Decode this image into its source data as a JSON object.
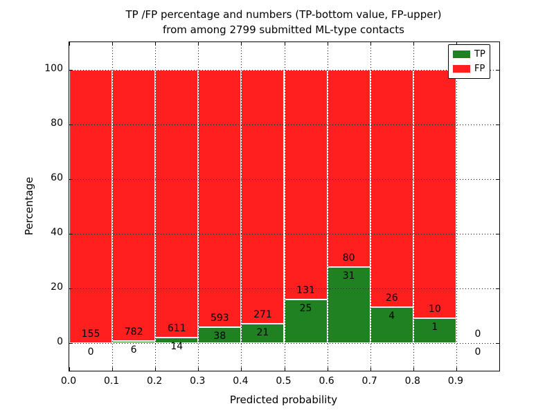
{
  "chart_data": {
    "type": "bar",
    "stacking": "percent",
    "title": "TP /FP percentage and numbers (TP-bottom value, FP-upper)\nfrom among 2799 submitted ML-type contacts",
    "xlabel": "Predicted probability",
    "ylabel": "Percentage",
    "xlim": [
      0.0,
      1.0
    ],
    "ylim": [
      -10,
      110
    ],
    "xticks": [
      0.0,
      0.1,
      0.2,
      0.3,
      0.4,
      0.5,
      0.6,
      0.7,
      0.8,
      0.9
    ],
    "xtick_labels": [
      "0.0",
      "0.1",
      "0.2",
      "0.3",
      "0.4",
      "0.5",
      "0.6",
      "0.7",
      "0.8",
      "0.9"
    ],
    "yticks": [
      0,
      20,
      40,
      60,
      80,
      100
    ],
    "bins": {
      "start": 0.0,
      "width": 0.1,
      "count": 10
    },
    "series": [
      {
        "name": "TP",
        "color": "#1f8121",
        "counts": [
          0,
          6,
          14,
          38,
          21,
          25,
          31,
          4,
          1,
          0
        ]
      },
      {
        "name": "FP",
        "color": "#ff1f1f",
        "counts": [
          155,
          782,
          611,
          593,
          271,
          131,
          80,
          26,
          10,
          0
        ]
      }
    ],
    "total_submitted": 2799,
    "grid": true,
    "legend_position": "upper right"
  }
}
